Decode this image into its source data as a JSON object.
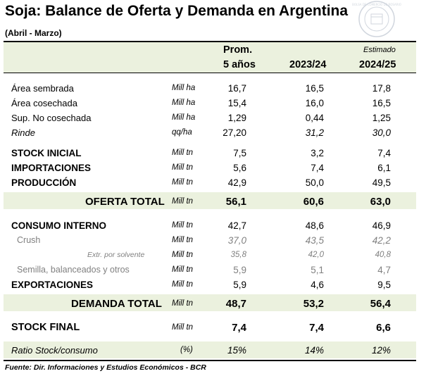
{
  "title": "Soja: Balance de Oferta y Demanda en Argentina",
  "subtitle": "(Abril - Marzo)",
  "seal_text": "BOLSA DE COMERCIO DE ROSARIO",
  "header": {
    "col1_line1": "Prom.",
    "col1_line2": "5 años",
    "col2": "2023/24",
    "col3_note": "Estimado",
    "col3": "2024/25"
  },
  "rows": {
    "area_sembrada": {
      "label": "Área sembrada",
      "unit": "Mill ha",
      "v1": "16,7",
      "v2": "16,5",
      "v3": "17,8"
    },
    "area_cosechada": {
      "label": "Área cosechada",
      "unit": "Mill ha",
      "v1": "15,4",
      "v2": "16,0",
      "v3": "16,5"
    },
    "sup_no_cosechada": {
      "label": "Sup. No cosechada",
      "unit": "Mill ha",
      "v1": "1,29",
      "v2": "0,44",
      "v3": "1,25"
    },
    "rinde": {
      "label": "Rinde",
      "unit": "qq/ha",
      "v1": "27,20",
      "v2": "31,2",
      "v3": "30,0"
    },
    "stock_inicial": {
      "label": "STOCK INICIAL",
      "unit": "Mill tn",
      "v1": "7,5",
      "v2": "3,2",
      "v3": "7,4"
    },
    "importaciones": {
      "label": "IMPORTACIONES",
      "unit": "Mill tn",
      "v1": "5,6",
      "v2": "7,4",
      "v3": "6,1"
    },
    "produccion": {
      "label": "PRODUCCIÓN",
      "unit": "Mill tn",
      "v1": "42,9",
      "v2": "50,0",
      "v3": "49,5"
    },
    "oferta_total": {
      "label": "OFERTA TOTAL",
      "unit": "Mill tn",
      "v1": "56,1",
      "v2": "60,6",
      "v3": "63,0"
    },
    "consumo_interno": {
      "label": "CONSUMO INTERNO",
      "unit": "Mill tn",
      "v1": "42,7",
      "v2": "48,6",
      "v3": "46,9"
    },
    "crush": {
      "label": "Crush",
      "unit": "Mill tn",
      "v1": "37,0",
      "v2": "43,5",
      "v3": "42,2"
    },
    "extr_solvente": {
      "label": "Extr. por solvente",
      "unit": "Mill tn",
      "v1": "35,8",
      "v2": "42,0",
      "v3": "40,8"
    },
    "semilla": {
      "label": "Semilla, balanceados y otros",
      "unit": "Mill tn",
      "v1": "5,9",
      "v2": "5,1",
      "v3": "4,7"
    },
    "exportaciones": {
      "label": "EXPORTACIONES",
      "unit": "Mill tn",
      "v1": "5,9",
      "v2": "4,6",
      "v3": "9,5"
    },
    "demanda_total": {
      "label": "DEMANDA TOTAL",
      "unit": "Mill tn",
      "v1": "48,7",
      "v2": "53,2",
      "v3": "56,4"
    },
    "stock_final": {
      "label": "STOCK FINAL",
      "unit": "Mill tn",
      "v1": "7,4",
      "v2": "7,4",
      "v3": "6,6"
    },
    "ratio": {
      "label": "Ratio Stock/consumo",
      "unit": "(%)",
      "v1": "15%",
      "v2": "14%",
      "v3": "12%"
    }
  },
  "source": "Fuente: Dir. Informaciones y Estudios Económicos - BCR"
}
